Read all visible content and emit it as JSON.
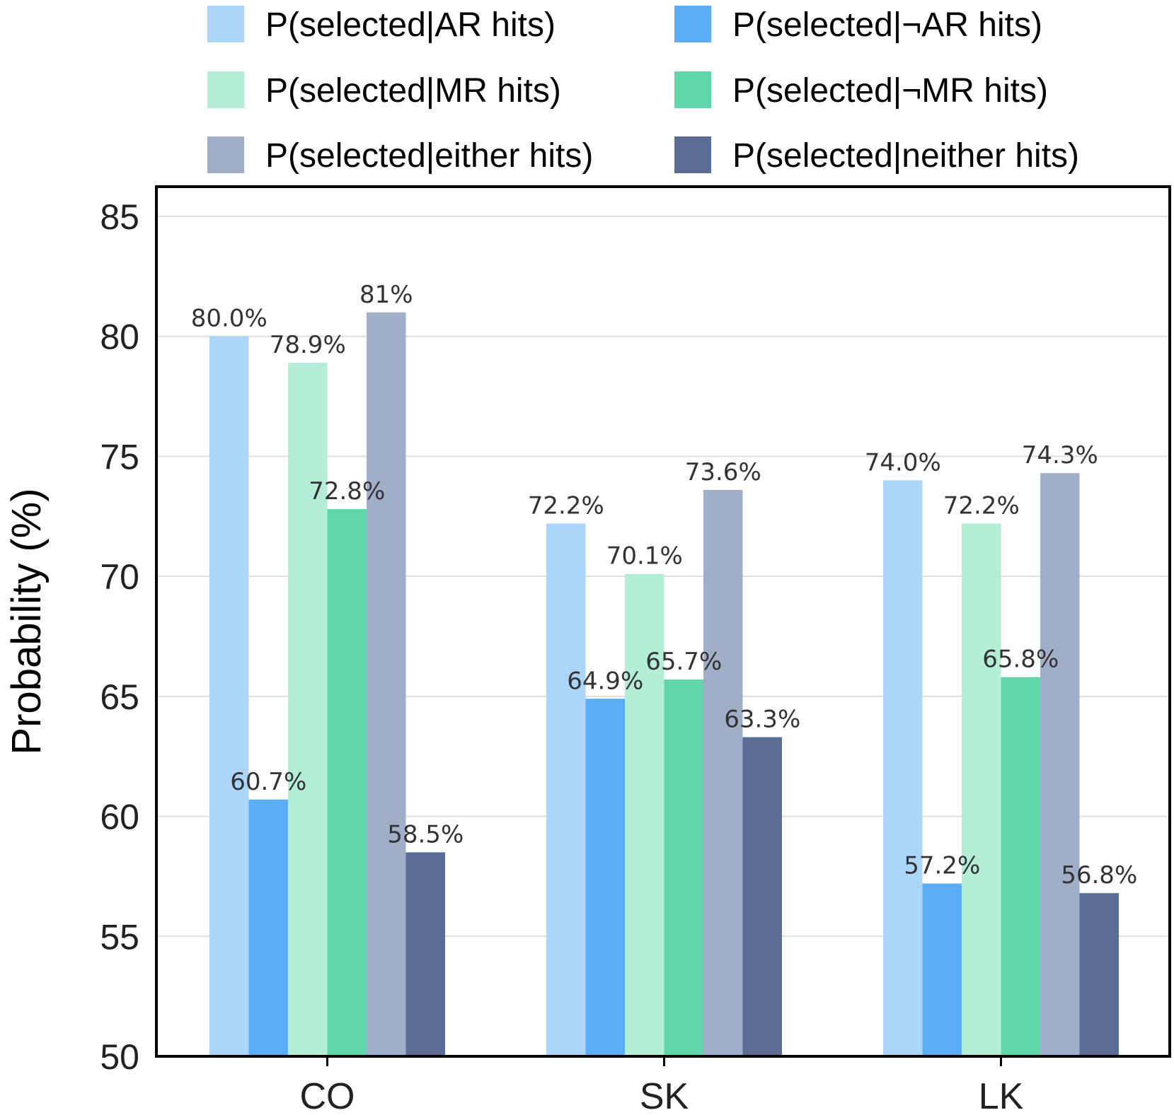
{
  "chart_data": {
    "type": "bar",
    "categories": [
      "CO",
      "SK",
      "LK"
    ],
    "series": [
      {
        "name": "P(selected|AR hits)",
        "color": "#acd6f9",
        "values": [
          80.0,
          72.2,
          74.0
        ],
        "labels": [
          "80.0%",
          "72.2%",
          "74.0%"
        ]
      },
      {
        "name": "P(selected|¬AR hits)",
        "color": "#5badf5",
        "values": [
          60.7,
          64.9,
          57.2
        ],
        "labels": [
          "60.7%",
          "64.9%",
          "57.2%"
        ]
      },
      {
        "name": "P(selected|MR hits)",
        "color": "#b4eed7",
        "values": [
          78.9,
          70.1,
          72.2
        ],
        "labels": [
          "78.9%",
          "70.1%",
          "72.2%"
        ]
      },
      {
        "name": "P(selected|¬MR hits)",
        "color": "#5fd7aa",
        "values": [
          72.8,
          65.7,
          65.8
        ],
        "labels": [
          "72.8%",
          "65.7%",
          "65.8%"
        ]
      },
      {
        "name": "P(selected|either hits)",
        "color": "#a0aec8",
        "values": [
          81,
          73.6,
          74.3
        ],
        "labels": [
          "81%",
          "73.6%",
          "74.3%"
        ]
      },
      {
        "name": "P(selected|neither hits)",
        "color": "#5b6c95",
        "values": [
          58.5,
          63.3,
          56.8
        ],
        "labels": [
          "58.5%",
          "63.3%",
          "56.8%"
        ]
      }
    ],
    "ylabel": "Probability (%)",
    "ylim": [
      50,
      85
    ],
    "yticks": [
      "50",
      "55",
      "60",
      "65",
      "70",
      "75",
      "80",
      "85"
    ],
    "grid": true,
    "legend_position": "top",
    "legend_columns": 2
  }
}
